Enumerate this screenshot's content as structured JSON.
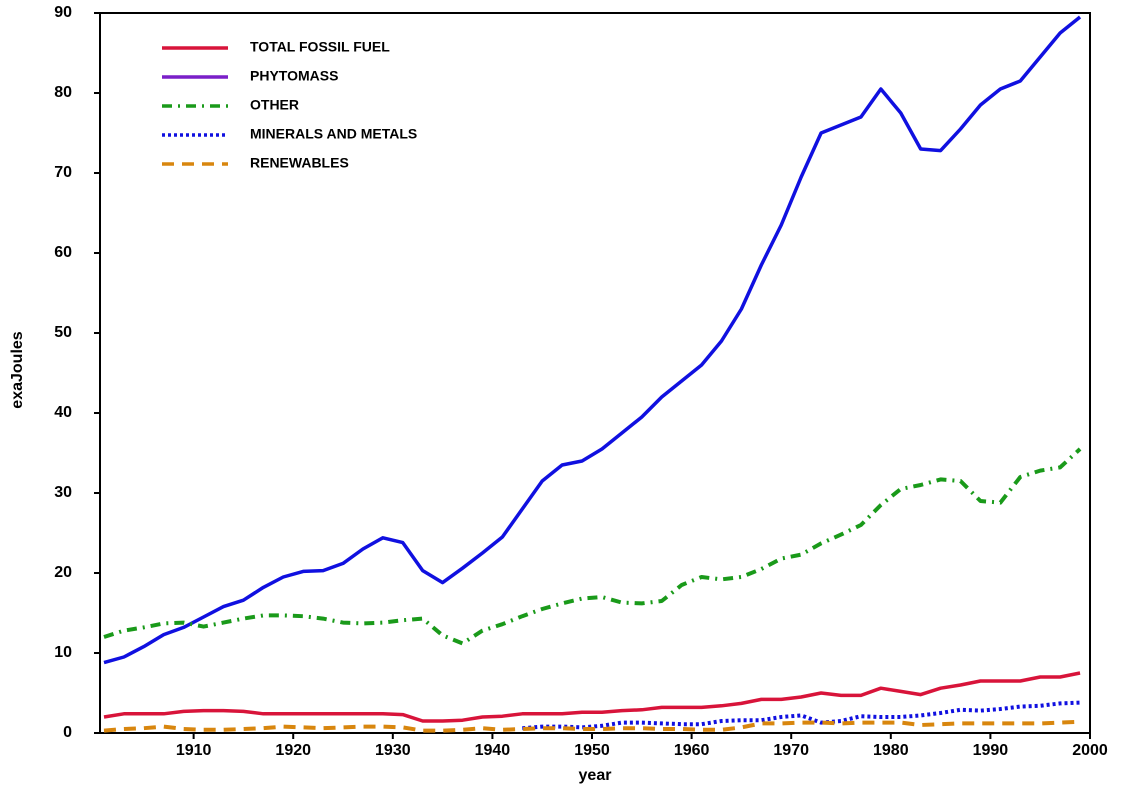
{
  "chart_data": {
    "type": "line",
    "x_label": "year",
    "y_label": "exaJoules",
    "xlim": [
      1900.6,
      2000
    ],
    "ylim": [
      0,
      90
    ],
    "xticks": [
      1910,
      1920,
      1930,
      1940,
      1950,
      1960,
      1970,
      1980,
      1990,
      2000
    ],
    "yticks": [
      0,
      10,
      20,
      30,
      40,
      50,
      60,
      70,
      80,
      90
    ],
    "legend": [
      {
        "name": "TOTAL FOSSIL FUEL",
        "color": "#d8143a",
        "style": "solid"
      },
      {
        "name": "PHYTOMASS",
        "color": "#7a1fc8",
        "style": "solid"
      },
      {
        "name": "OTHER",
        "color": "#1a9a1a",
        "style": "dashdot"
      },
      {
        "name": "MINERALS AND METALS",
        "color": "#1010e0",
        "style": "dotted"
      },
      {
        "name": "RENEWABLES",
        "color": "#d8860e",
        "style": "dashed"
      }
    ],
    "x": [
      1901,
      1903,
      1905,
      1907,
      1909,
      1911,
      1913,
      1915,
      1917,
      1919,
      1921,
      1923,
      1925,
      1927,
      1929,
      1931,
      1933,
      1935,
      1937,
      1939,
      1941,
      1943,
      1945,
      1947,
      1949,
      1951,
      1953,
      1955,
      1957,
      1959,
      1961,
      1963,
      1965,
      1967,
      1969,
      1971,
      1973,
      1975,
      1977,
      1979,
      1981,
      1983,
      1985,
      1987,
      1989,
      1991,
      1993,
      1995,
      1997,
      1999
    ],
    "series": [
      {
        "color": "#1010e0",
        "style": "solid",
        "values": [
          8.8,
          9.5,
          10.8,
          12.3,
          13.2,
          14.5,
          15.8,
          16.6,
          18.2,
          19.5,
          20.2,
          20.3,
          21.2,
          23,
          24.4,
          23.8,
          20.3,
          18.8,
          20.6,
          22.5,
          24.5,
          28,
          31.5,
          33.5,
          34,
          35.5,
          37.5,
          39.5,
          42,
          44,
          46,
          49,
          53,
          58.5,
          63.5,
          69.5,
          75,
          76,
          77,
          80.5,
          77.5,
          73,
          72.8,
          75.5,
          78.5,
          80.5,
          81.5,
          84.5,
          87.5,
          89.5
        ]
      },
      {
        "color": "#1a9a1a",
        "style": "dashdot",
        "values": [
          12,
          12.8,
          13.2,
          13.7,
          13.8,
          13.3,
          13.8,
          14.3,
          14.7,
          14.7,
          14.6,
          14.3,
          13.8,
          13.7,
          13.8,
          14.1,
          14.3,
          12.2,
          11.2,
          12.8,
          13.6,
          14.6,
          15.5,
          16.2,
          16.8,
          17,
          16.3,
          16.2,
          16.5,
          18.5,
          19.5,
          19.2,
          19.5,
          20.5,
          21.8,
          22.3,
          23.7,
          24.8,
          26,
          28.5,
          30.5,
          31,
          31.7,
          31.5,
          29,
          28.8,
          32,
          32.8,
          33.2,
          35.5
        ]
      },
      {
        "color": "#d8143a",
        "style": "solid",
        "values": [
          2,
          2.4,
          2.4,
          2.4,
          2.7,
          2.8,
          2.8,
          2.7,
          2.4,
          2.4,
          2.4,
          2.4,
          2.4,
          2.4,
          2.4,
          2.3,
          1.5,
          1.5,
          1.6,
          2,
          2.1,
          2.4,
          2.4,
          2.4,
          2.6,
          2.6,
          2.8,
          2.9,
          3.2,
          3.2,
          3.2,
          3.4,
          3.7,
          4.2,
          4.2,
          4.5,
          5,
          4.7,
          4.7,
          5.6,
          5.2,
          4.8,
          5.6,
          6,
          6.5,
          6.5,
          6.5,
          7,
          7,
          7.5
        ]
      },
      {
        "color": "#1010e0",
        "style": "dotted",
        "values": [
          null,
          null,
          null,
          null,
          null,
          null,
          null,
          null,
          null,
          null,
          null,
          null,
          null,
          null,
          null,
          null,
          null,
          null,
          null,
          null,
          null,
          0.6,
          0.8,
          0.8,
          0.7,
          0.9,
          1.3,
          1.3,
          1.2,
          1.1,
          1.1,
          1.5,
          1.6,
          1.6,
          2,
          2.2,
          1.3,
          1.5,
          2.1,
          2,
          2,
          2.2,
          2.5,
          2.9,
          2.8,
          3,
          3.3,
          3.4,
          3.7,
          3.8
        ]
      },
      {
        "color": "#d8860e",
        "style": "dashed",
        "values": [
          0.3,
          0.5,
          0.6,
          0.8,
          0.5,
          0.4,
          0.4,
          0.5,
          0.6,
          0.8,
          0.7,
          0.6,
          0.7,
          0.8,
          0.8,
          0.7,
          0.3,
          0.3,
          0.4,
          0.6,
          0.4,
          0.5,
          0.6,
          0.6,
          0.5,
          0.5,
          0.6,
          0.6,
          0.5,
          0.5,
          0.4,
          0.4,
          0.7,
          1.2,
          1.2,
          1.3,
          1.3,
          1.2,
          1.3,
          1.3,
          1.3,
          1.0,
          1.1,
          1.2,
          1.2,
          1.2,
          1.2,
          1.2,
          1.3,
          1.4
        ]
      }
    ]
  }
}
